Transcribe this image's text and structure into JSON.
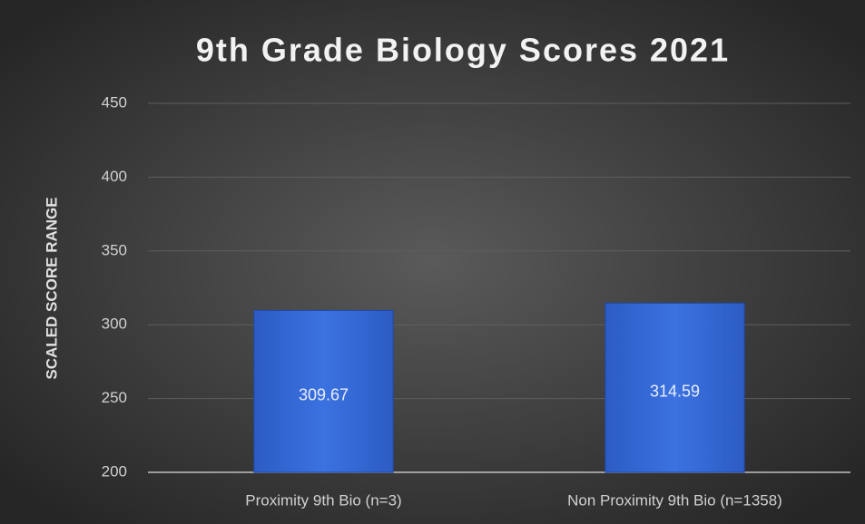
{
  "chart_data": {
    "type": "bar",
    "title": "9th Grade Biology Scores 2021",
    "y_label": "SCALED SCORE RANGE",
    "categories": [
      "Proximity 9th Bio (n=3)",
      "Non Proximity 9th Bio (n=1358)"
    ],
    "values": [
      309.67,
      314.59
    ],
    "color": "#3568d4",
    "ylim": [
      200,
      450
    ],
    "yticks": [
      200,
      250,
      300,
      350,
      400,
      450
    ],
    "grid": true
  }
}
